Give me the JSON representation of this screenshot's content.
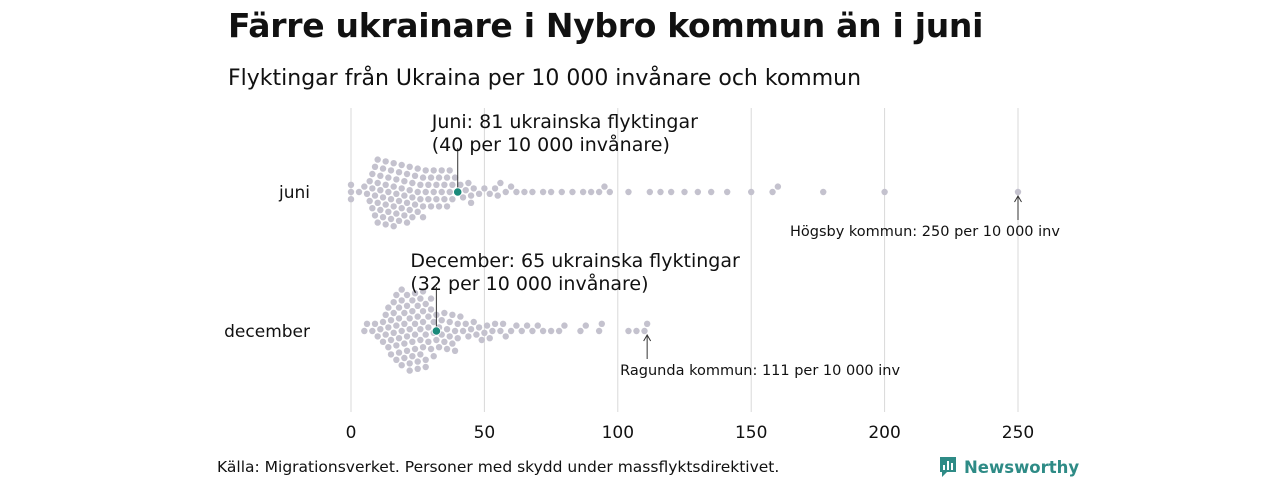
{
  "title": "Färre ukrainare i Nybro kommun än i juni",
  "subtitle": "Flyktingar från Ukraina per 10 000 invånare och kommun",
  "source": "Källa: Migrationsverket. Personer med skydd under massflyktsdirektivet.",
  "brand": "Newsworthy",
  "colors": {
    "dot": "#c4c2ce",
    "highlight": "#1a8a7a",
    "grid": "#d9d9d9",
    "text": "#111111",
    "brand": "#2e8b86"
  },
  "chart_data": {
    "type": "scatter",
    "subtype": "beeswarm",
    "xlim": [
      0,
      250
    ],
    "xticks": [
      0,
      50,
      100,
      150,
      200,
      250
    ],
    "grid": true,
    "categories": [
      "juni",
      "december"
    ],
    "series": [
      {
        "category": "juni",
        "highlight": {
          "value": 40,
          "label_line1": "Juni: 81 ukrainska flyktingar",
          "label_line2": "(40 per 10 000 invånare)"
        },
        "max": {
          "value": 250,
          "label": "Högsby kommun: 250 per 10 000 inv"
        },
        "values": [
          0,
          0,
          0,
          3,
          5,
          6,
          7,
          7,
          8,
          8,
          8,
          9,
          9,
          9,
          10,
          10,
          10,
          10,
          11,
          11,
          11,
          12,
          12,
          12,
          13,
          13,
          13,
          13,
          14,
          14,
          14,
          15,
          15,
          15,
          16,
          16,
          16,
          16,
          17,
          17,
          17,
          18,
          18,
          18,
          19,
          19,
          19,
          20,
          20,
          20,
          21,
          21,
          21,
          22,
          22,
          22,
          23,
          23,
          23,
          24,
          24,
          25,
          25,
          25,
          26,
          26,
          27,
          27,
          27,
          28,
          28,
          29,
          29,
          30,
          30,
          31,
          31,
          32,
          32,
          33,
          33,
          34,
          34,
          35,
          35,
          36,
          36,
          37,
          37,
          38,
          38,
          39,
          40,
          41,
          42,
          43,
          44,
          45,
          45,
          46,
          48,
          50,
          52,
          54,
          55,
          56,
          58,
          60,
          62,
          65,
          68,
          72,
          75,
          79,
          83,
          87,
          90,
          93,
          95,
          97,
          104,
          112,
          116,
          120,
          125,
          130,
          135,
          141,
          150,
          158,
          160,
          177,
          200,
          250
        ]
      },
      {
        "category": "december",
        "highlight": {
          "value": 32,
          "label_line1": "December: 65 ukrainska flyktingar",
          "label_line2": "(32 per 10 000 invånare)"
        },
        "max": {
          "value": 111,
          "label": "Ragunda kommun: 111 per 10 000 inv"
        },
        "values": [
          5,
          6,
          8,
          9,
          10,
          11,
          12,
          12,
          13,
          13,
          14,
          14,
          14,
          15,
          15,
          15,
          16,
          16,
          16,
          17,
          17,
          17,
          17,
          18,
          18,
          18,
          18,
          19,
          19,
          19,
          19,
          20,
          20,
          20,
          20,
          21,
          21,
          21,
          21,
          22,
          22,
          22,
          22,
          23,
          23,
          23,
          23,
          24,
          24,
          24,
          24,
          25,
          25,
          25,
          25,
          26,
          26,
          26,
          26,
          27,
          27,
          27,
          27,
          28,
          28,
          28,
          28,
          29,
          29,
          29,
          30,
          30,
          30,
          31,
          31,
          31,
          32,
          32,
          33,
          33,
          34,
          34,
          35,
          35,
          36,
          36,
          37,
          37,
          38,
          38,
          39,
          39,
          40,
          40,
          41,
          42,
          43,
          44,
          45,
          46,
          47,
          48,
          49,
          50,
          51,
          52,
          53,
          54,
          56,
          57,
          58,
          60,
          62,
          64,
          66,
          68,
          70,
          72,
          75,
          78,
          80,
          86,
          88,
          93,
          94,
          104,
          107,
          110,
          111
        ]
      }
    ]
  }
}
